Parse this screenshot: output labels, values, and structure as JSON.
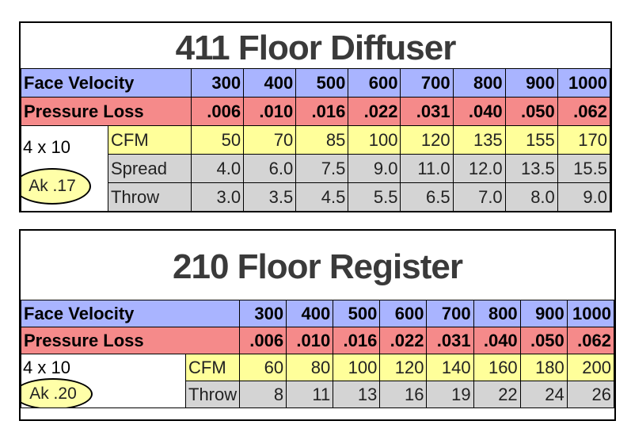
{
  "tables": [
    {
      "title": "411 Floor Diffuser",
      "face_velocity_label": "Face Velocity",
      "face_velocity": [
        "300",
        "400",
        "500",
        "600",
        "700",
        "800",
        "900",
        "1000"
      ],
      "pressure_loss_label": "Pressure Loss",
      "pressure_loss": [
        ".006",
        ".010",
        ".016",
        ".022",
        ".031",
        ".040",
        ".050",
        ".062"
      ],
      "size": "4 x 10",
      "ak": "Ak .17",
      "rows": [
        {
          "label": "CFM",
          "values": [
            "50",
            "70",
            "85",
            "100",
            "120",
            "135",
            "155",
            "170"
          ]
        },
        {
          "label": "Spread",
          "values": [
            "4.0",
            "6.0",
            "7.5",
            "9.0",
            "11.0",
            "12.0",
            "13.5",
            "15.5"
          ]
        },
        {
          "label": "Throw",
          "values": [
            "3.0",
            "3.5",
            "4.5",
            "5.5",
            "6.5",
            "7.0",
            "8.0",
            "9.0"
          ]
        }
      ]
    },
    {
      "title": "210 Floor Register",
      "face_velocity_label": "Face Velocity",
      "face_velocity": [
        "300",
        "400",
        "500",
        "600",
        "700",
        "800",
        "900",
        "1000"
      ],
      "pressure_loss_label": "Pressure Loss",
      "pressure_loss": [
        ".006",
        ".010",
        ".016",
        ".022",
        ".031",
        ".040",
        ".050",
        ".062"
      ],
      "size": "4 x 10",
      "ak": "Ak .20",
      "rows": [
        {
          "label": "CFM",
          "values": [
            "60",
            "80",
            "100",
            "120",
            "140",
            "160",
            "180",
            "200"
          ]
        },
        {
          "label": "Throw",
          "values": [
            "8",
            "11",
            "13",
            "16",
            "19",
            "22",
            "24",
            "26"
          ]
        }
      ]
    }
  ],
  "colors": {
    "face_velocity_bg": "#a9b4ff",
    "pressure_loss_bg": "#f58a8a",
    "cfm_bg": "#ffff9a",
    "gray_bg": "#d4d4d4",
    "ak_highlight": "#ffffa8"
  }
}
